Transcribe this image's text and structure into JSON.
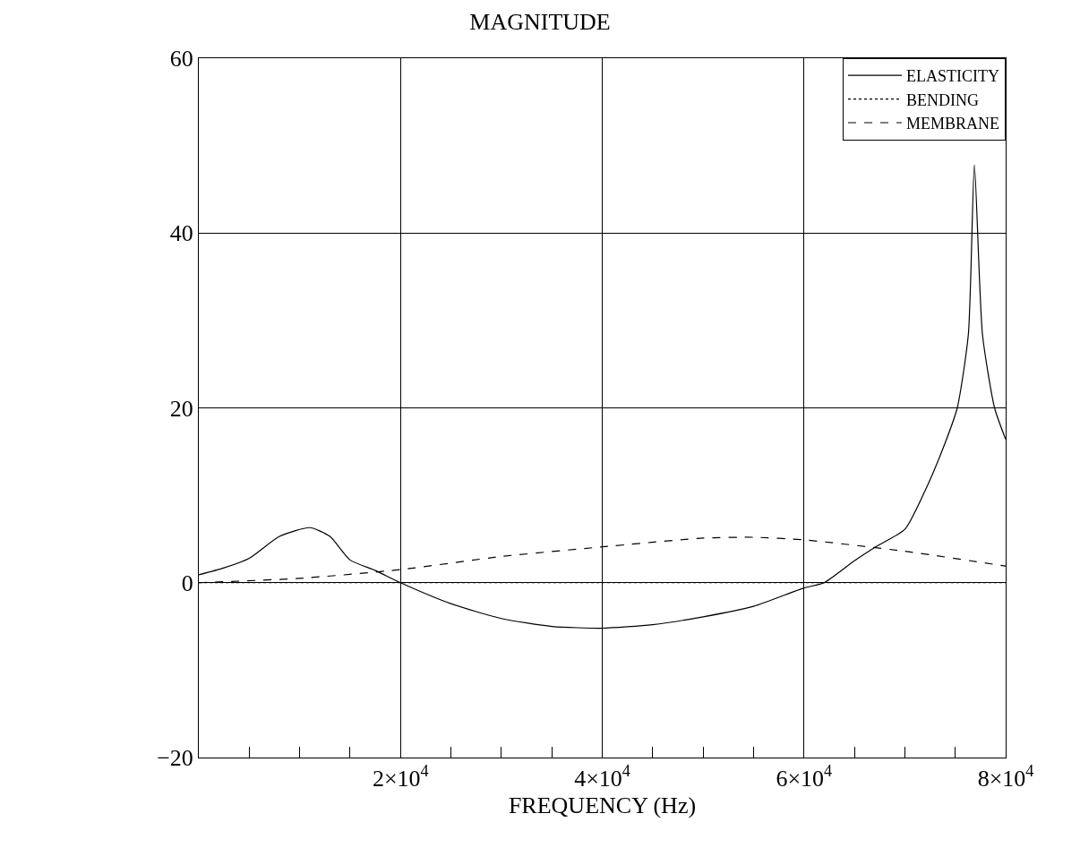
{
  "chart_data": {
    "type": "line",
    "title": "MAGNITUDE",
    "xlabel": "FREQUENCY (Hz)",
    "series": [
      {
        "name": "ELASTICITY",
        "color": "#000000",
        "line_style": "solid",
        "x": [
          0,
          2500,
          5000,
          8000,
          11000,
          13000,
          15000,
          17500,
          20000,
          25000,
          30000,
          35000,
          40000,
          45000,
          50000,
          55000,
          60000,
          62000,
          65000,
          67100,
          70000,
          72000,
          74000,
          75200,
          76300,
          76900,
          77700,
          78900,
          80000
        ],
        "values": [
          0.9,
          1.7,
          2.8,
          5.3,
          6.3,
          5.3,
          2.6,
          1.4,
          0,
          -2.4,
          -4.1,
          -5,
          -5.2,
          -4.8,
          -3.9,
          -2.7,
          -0.6,
          0,
          2.5,
          4.1,
          6.1,
          10.5,
          16,
          20,
          28.4,
          47.8,
          28.4,
          20,
          16.4
        ]
      },
      {
        "name": "BENDING",
        "color": "#000000",
        "line_style": "dotted",
        "x": [
          0,
          10000,
          20000,
          30000,
          40000,
          50000,
          60000,
          70000,
          80000
        ],
        "values": [
          0,
          0,
          0,
          0,
          0,
          0,
          0,
          0,
          0
        ]
      },
      {
        "name": "MEMBRANE",
        "color": "#000000",
        "line_style": "dashed",
        "x": [
          0,
          10000,
          20000,
          30000,
          40000,
          50000,
          55000,
          60000,
          70000,
          80000
        ],
        "values": [
          0,
          0.5,
          1.5,
          3.0,
          4.1,
          5.1,
          5.2,
          4.9,
          3.6,
          1.9
        ]
      }
    ],
    "xlim": [
      0,
      80000
    ],
    "xticks": [
      {
        "value": 20000,
        "label": "2×10$^{4}$"
      },
      {
        "value": 40000,
        "label": "4×10$^{4}$"
      },
      {
        "value": 60000,
        "label": "6×10$^{4}$"
      },
      {
        "value": 80000,
        "label": "8×10$^{4}$"
      }
    ],
    "ylim": [
      -20,
      60
    ],
    "yticks": [
      -20,
      0,
      20,
      40,
      60
    ],
    "grid": true,
    "legend": "top right",
    "marker": "none"
  }
}
